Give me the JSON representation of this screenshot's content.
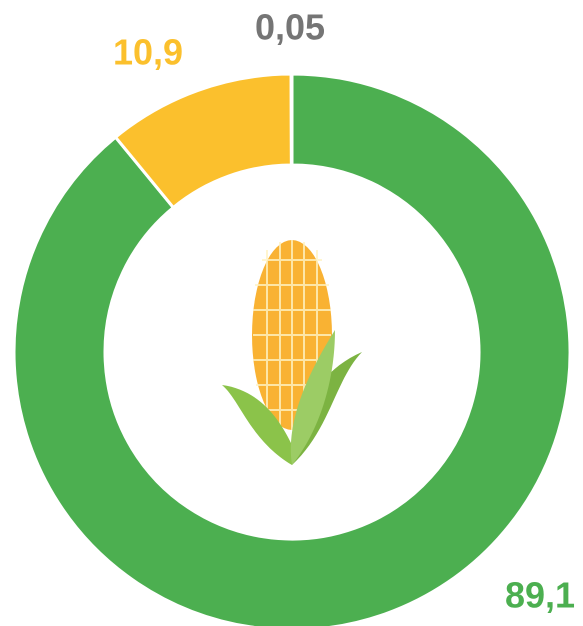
{
  "chart_data": {
    "type": "donut",
    "values": [
      89.1,
      10.9,
      0.05
    ],
    "value_labels": [
      "89,1",
      "10,9",
      "0,05"
    ],
    "colors": [
      "#4caf50",
      "#fbc02d",
      "#757575"
    ]
  }
}
